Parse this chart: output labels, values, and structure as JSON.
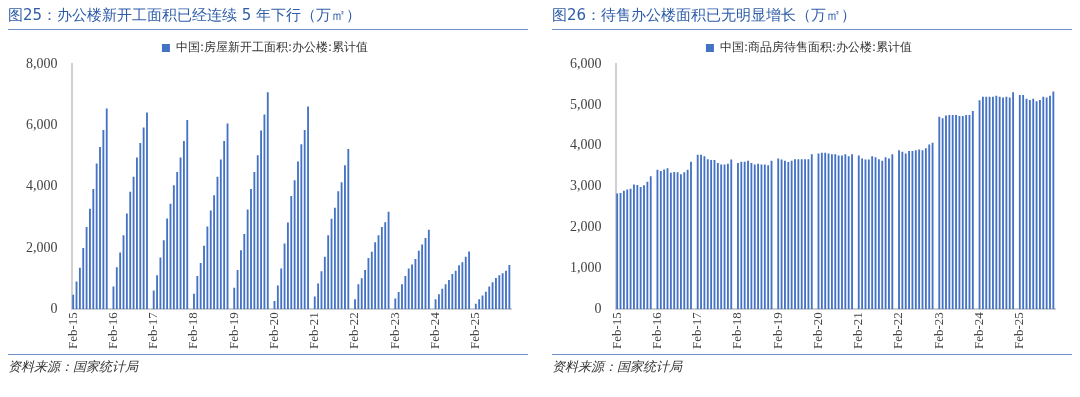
{
  "chart_data": [
    {
      "type": "bar",
      "title": "图25：办公楼新开工面积已经连续 5 年下行（万㎡）",
      "annotations": [
        "资料来源：国家统计局"
      ],
      "legend": "top",
      "grid": false,
      "ylim": [
        0,
        8000
      ],
      "yticks": [
        0,
        {
          "value": 2000,
          "label": "2,000"
        },
        {
          "value": 4000,
          "label": "4,000"
        },
        {
          "value": 6000,
          "label": "6,000"
        },
        {
          "value": 8000,
          "label": "8,000"
        }
      ],
      "categories": [
        "Feb-15",
        null,
        null,
        null,
        null,
        null,
        null,
        null,
        null,
        null,
        null,
        null,
        "Feb-16",
        null,
        null,
        null,
        null,
        null,
        null,
        null,
        null,
        null,
        null,
        null,
        "Feb-17",
        null,
        null,
        null,
        null,
        null,
        null,
        null,
        null,
        null,
        null,
        null,
        "Feb-18",
        null,
        null,
        null,
        null,
        null,
        null,
        null,
        null,
        null,
        null,
        null,
        "Feb-19",
        null,
        null,
        null,
        null,
        null,
        null,
        null,
        null,
        null,
        null,
        null,
        "Feb-20",
        null,
        null,
        null,
        null,
        null,
        null,
        null,
        null,
        null,
        null,
        null,
        "Feb-21",
        null,
        null,
        null,
        null,
        null,
        null,
        null,
        null,
        null,
        null,
        null,
        "Feb-22",
        null,
        null,
        null,
        null,
        null,
        null,
        null,
        null,
        null,
        null,
        null,
        "Feb-23",
        null,
        null,
        null,
        null,
        null,
        null,
        null,
        null,
        null,
        null,
        null,
        "Feb-24",
        null,
        null,
        null,
        null,
        null,
        null,
        null,
        null,
        null,
        null,
        null,
        "Feb-25",
        null,
        null,
        null,
        null,
        null,
        null,
        null,
        null,
        null,
        null
      ],
      "series": [
        {
          "name": "中国:房屋新开工面积:办公楼:累计值",
          "color": "#4472c4",
          "values": [
            470,
            900,
            1350,
            2000,
            2680,
            3280,
            3920,
            4750,
            5290,
            5850,
            6550,
            null,
            740,
            1370,
            1850,
            2410,
            3120,
            3830,
            4320,
            4950,
            5420,
            5930,
            6420,
            null,
            610,
            1110,
            1690,
            2250,
            2960,
            3440,
            4040,
            4480,
            4950,
            5490,
            6170,
            null,
            500,
            1080,
            1510,
            2070,
            2700,
            3220,
            3720,
            4320,
            4880,
            5490,
            6060,
            null,
            700,
            1280,
            1920,
            2450,
            3250,
            3920,
            4480,
            5020,
            5830,
            6350,
            7080,
            null,
            270,
            770,
            1330,
            2140,
            2830,
            3690,
            4210,
            4820,
            5380,
            5850,
            6610,
            null,
            410,
            840,
            1240,
            1710,
            2410,
            2950,
            3310,
            3850,
            4140,
            4700,
            5230,
            null,
            320,
            810,
            1010,
            1280,
            1670,
            1870,
            2180,
            2410,
            2680,
            2840,
            3180,
            null,
            350,
            560,
            810,
            1080,
            1330,
            1460,
            1640,
            1910,
            2110,
            2320,
            2590,
            null,
            320,
            490,
            670,
            810,
            950,
            1150,
            1250,
            1430,
            1530,
            1710,
            1880,
            null,
            180,
            320,
            450,
            570,
            740,
            880,
            1020,
            1110,
            1170,
            1250,
            1440
          ]
        }
      ]
    },
    {
      "type": "bar",
      "title": "图26：待售办公楼面积已无明显增长（万㎡）",
      "annotations": [
        "资料来源：国家统计局"
      ],
      "legend": "top",
      "grid": false,
      "ylim": [
        0,
        6000
      ],
      "yticks": [
        0,
        {
          "value": 1000,
          "label": "1,000"
        },
        {
          "value": 2000,
          "label": "2,000"
        },
        {
          "value": 3000,
          "label": "3,000"
        },
        {
          "value": 4000,
          "label": "4,000"
        },
        {
          "value": 5000,
          "label": "5,000"
        },
        {
          "value": 6000,
          "label": "6,000"
        }
      ],
      "categories": [
        "Feb-15",
        null,
        null,
        null,
        null,
        null,
        null,
        null,
        null,
        null,
        null,
        null,
        "Feb-16",
        null,
        null,
        null,
        null,
        null,
        null,
        null,
        null,
        null,
        null,
        null,
        "Feb-17",
        null,
        null,
        null,
        null,
        null,
        null,
        null,
        null,
        null,
        null,
        null,
        "Feb-18",
        null,
        null,
        null,
        null,
        null,
        null,
        null,
        null,
        null,
        null,
        null,
        "Feb-19",
        null,
        null,
        null,
        null,
        null,
        null,
        null,
        null,
        null,
        null,
        null,
        "Feb-20",
        null,
        null,
        null,
        null,
        null,
        null,
        null,
        null,
        null,
        null,
        null,
        "Feb-21",
        null,
        null,
        null,
        null,
        null,
        null,
        null,
        null,
        null,
        null,
        null,
        "Feb-22",
        null,
        null,
        null,
        null,
        null,
        null,
        null,
        null,
        null,
        null,
        null,
        "Feb-23",
        null,
        null,
        null,
        null,
        null,
        null,
        null,
        null,
        null,
        null,
        null,
        "Feb-24",
        null,
        null,
        null,
        null,
        null,
        null,
        null,
        null,
        null,
        null,
        null,
        "Feb-25",
        null,
        null,
        null,
        null,
        null,
        null,
        null,
        null,
        null,
        null
      ],
      "series": [
        {
          "name": "中国:商品房待售面积:办公楼:累计值",
          "color": "#4472c4",
          "values": [
            2830,
            2840,
            2900,
            2930,
            2950,
            3050,
            3040,
            2990,
            3030,
            3120,
            3250,
            null,
            3410,
            3380,
            3420,
            3450,
            3340,
            3360,
            3350,
            3300,
            3350,
            3410,
            3610,
            null,
            3780,
            3780,
            3740,
            3670,
            3650,
            3650,
            3580,
            3540,
            3540,
            3560,
            3660,
            null,
            3580,
            3610,
            3610,
            3630,
            3580,
            3540,
            3560,
            3540,
            3540,
            3520,
            3630,
            null,
            3690,
            3660,
            3630,
            3600,
            3630,
            3670,
            3670,
            3670,
            3670,
            3670,
            3790,
            null,
            3810,
            3830,
            3830,
            3810,
            3790,
            3790,
            3760,
            3760,
            3790,
            3740,
            3790,
            null,
            3760,
            3690,
            3660,
            3660,
            3740,
            3720,
            3670,
            3630,
            3720,
            3690,
            3790,
            null,
            3890,
            3850,
            3810,
            3870,
            3870,
            3890,
            3910,
            3890,
            3940,
            4030,
            4070,
            null,
            4710,
            4670,
            4740,
            4750,
            4750,
            4750,
            4730,
            4730,
            4750,
            4750,
            4850,
            null,
            5110,
            5200,
            5200,
            5200,
            5200,
            5220,
            5200,
            5180,
            5200,
            5180,
            5310,
            null,
            5240,
            5240,
            5150,
            5120,
            5150,
            5090,
            5120,
            5200,
            5180,
            5220,
            5330
          ]
        }
      ]
    }
  ]
}
